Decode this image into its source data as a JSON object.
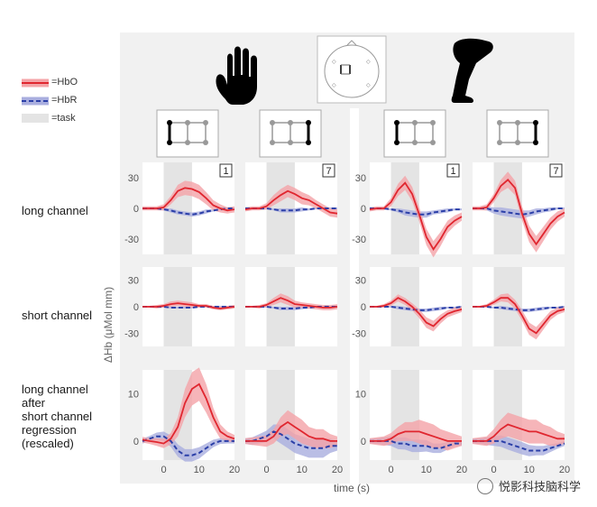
{
  "legend": {
    "hbo": "=HbO",
    "hbr": "=HbR",
    "task": "=task"
  },
  "row_labels": [
    "long channel",
    "short channel",
    "long channel\nafter\nshort channel\nregression\n(rescaled)"
  ],
  "y_axis_label": "ΔHb (μMol mm)",
  "x_axis_label": "time (s)",
  "watermark": "悦影科技脑科学",
  "colors": {
    "hbo": "#e0262f",
    "hbo_band": "#f4a3a7",
    "hbr": "#2b3fa8",
    "hbr_band": "#a9aedf",
    "task": "#e4e4e4",
    "panel_bg": "#f1f1f1"
  },
  "icons": {
    "left_group": "hand-icon",
    "right_group": "leg-icon",
    "center": "head-probe-icon"
  },
  "chart_data": {
    "type": "line",
    "x_ticks": [
      0,
      10,
      20
    ],
    "xlim": [
      -6,
      20
    ],
    "task_interval": [
      0,
      8
    ],
    "columns": [
      {
        "group": "hand",
        "badge": "1"
      },
      {
        "group": "hand",
        "badge": "7"
      },
      {
        "group": "leg",
        "badge": "1"
      },
      {
        "group": "leg",
        "badge": "7"
      }
    ],
    "rows": [
      {
        "name": "long channel",
        "y_ticks": [
          30,
          0,
          -30
        ],
        "ylim": [
          -45,
          45
        ],
        "panels": [
          {
            "x": [
              -6,
              -4,
              -2,
              0,
              2,
              4,
              6,
              8,
              10,
              12,
              14,
              16,
              18,
              20
            ],
            "hbo": [
              0,
              0,
              0,
              1,
              8,
              17,
              20,
              19,
              16,
              10,
              3,
              0,
              -2,
              -1
            ],
            "hbo_sd": [
              2,
              2,
              2,
              3,
              4,
              6,
              7,
              7,
              7,
              6,
              5,
              4,
              3,
              3
            ],
            "hbr": [
              0,
              0,
              0,
              -1,
              -2,
              -4,
              -5,
              -6,
              -5,
              -3,
              -2,
              -1,
              0,
              0
            ],
            "hbr_sd": [
              1,
              1,
              1,
              1,
              2,
              2,
              2,
              2,
              2,
              2,
              1,
              1,
              1,
              1
            ]
          },
          {
            "x": [
              -6,
              -4,
              -2,
              0,
              2,
              4,
              6,
              8,
              10,
              12,
              14,
              16,
              18,
              20
            ],
            "hbo": [
              -1,
              0,
              0,
              2,
              8,
              13,
              17,
              14,
              10,
              8,
              4,
              0,
              -4,
              -5
            ],
            "hbo_sd": [
              2,
              2,
              2,
              3,
              5,
              6,
              6,
              6,
              6,
              5,
              4,
              4,
              4,
              4
            ],
            "hbr": [
              0,
              0,
              0,
              0,
              -1,
              -2,
              -2,
              -2,
              -1,
              -1,
              0,
              0,
              0,
              0
            ],
            "hbr_sd": [
              1,
              1,
              1,
              1,
              1,
              2,
              2,
              2,
              2,
              1,
              1,
              1,
              1,
              1
            ]
          },
          {
            "x": [
              -6,
              -4,
              -2,
              0,
              2,
              4,
              6,
              8,
              10,
              12,
              14,
              16,
              18,
              20
            ],
            "hbo": [
              -1,
              0,
              0,
              6,
              18,
              25,
              14,
              -6,
              -28,
              -40,
              -30,
              -18,
              -12,
              -8
            ],
            "hbo_sd": [
              2,
              2,
              2,
              4,
              6,
              7,
              7,
              7,
              8,
              8,
              7,
              6,
              5,
              4
            ],
            "hbr": [
              0,
              0,
              0,
              -1,
              -2,
              -4,
              -5,
              -6,
              -6,
              -4,
              -3,
              -2,
              -1,
              -1
            ],
            "hbr_sd": [
              1,
              1,
              1,
              1,
              2,
              3,
              3,
              3,
              3,
              2,
              2,
              2,
              1,
              1
            ]
          },
          {
            "x": [
              -6,
              -4,
              -2,
              0,
              2,
              4,
              6,
              8,
              10,
              12,
              14,
              16,
              18,
              20
            ],
            "hbo": [
              0,
              0,
              1,
              10,
              22,
              28,
              20,
              -5,
              -25,
              -35,
              -25,
              -15,
              -8,
              -4
            ],
            "hbo_sd": [
              2,
              2,
              3,
              4,
              6,
              8,
              7,
              7,
              8,
              8,
              7,
              6,
              5,
              4
            ],
            "hbr": [
              0,
              0,
              0,
              -2,
              -3,
              -4,
              -5,
              -6,
              -5,
              -3,
              -2,
              -1,
              0,
              0
            ],
            "hbr_sd": [
              1,
              1,
              2,
              3,
              4,
              4,
              4,
              4,
              3,
              3,
              2,
              2,
              1,
              1
            ]
          }
        ]
      },
      {
        "name": "short channel",
        "y_ticks": [
          30,
          0,
          -30
        ],
        "ylim": [
          -45,
          45
        ],
        "panels": [
          {
            "x": [
              -6,
              -4,
              -2,
              0,
              2,
              4,
              6,
              8,
              10,
              12,
              14,
              16,
              18,
              20
            ],
            "hbo": [
              0,
              0,
              0,
              1,
              3,
              4,
              3,
              2,
              1,
              1,
              -1,
              -2,
              -1,
              0
            ],
            "hbo_sd": [
              1,
              1,
              2,
              2,
              3,
              3,
              3,
              3,
              2,
              2,
              2,
              2,
              2,
              2
            ],
            "hbr": [
              0,
              0,
              0,
              0,
              -1,
              -1,
              -1,
              -1,
              0,
              0,
              0,
              0,
              0,
              0
            ],
            "hbr_sd": [
              1,
              1,
              1,
              1,
              1,
              1,
              1,
              1,
              1,
              1,
              1,
              1,
              1,
              1
            ]
          },
          {
            "x": [
              -6,
              -4,
              -2,
              0,
              2,
              4,
              6,
              8,
              10,
              12,
              14,
              16,
              18,
              20
            ],
            "hbo": [
              0,
              0,
              0,
              2,
              6,
              10,
              7,
              3,
              2,
              1,
              0,
              -1,
              -1,
              0
            ],
            "hbo_sd": [
              1,
              1,
              2,
              2,
              4,
              5,
              5,
              4,
              3,
              3,
              3,
              3,
              3,
              3
            ],
            "hbr": [
              0,
              0,
              0,
              0,
              -1,
              -2,
              -2,
              -2,
              -1,
              -1,
              0,
              0,
              0,
              0
            ],
            "hbr_sd": [
              1,
              1,
              1,
              1,
              1,
              2,
              2,
              2,
              2,
              1,
              1,
              1,
              1,
              1
            ]
          },
          {
            "x": [
              -6,
              -4,
              -2,
              0,
              2,
              4,
              6,
              8,
              10,
              12,
              14,
              16,
              18,
              20
            ],
            "hbo": [
              0,
              0,
              1,
              4,
              10,
              6,
              0,
              -8,
              -18,
              -22,
              -14,
              -8,
              -5,
              -3
            ],
            "hbo_sd": [
              1,
              1,
              2,
              3,
              4,
              4,
              4,
              5,
              6,
              6,
              5,
              4,
              4,
              3
            ],
            "hbr": [
              0,
              0,
              0,
              0,
              -1,
              -2,
              -3,
              -4,
              -4,
              -3,
              -2,
              -1,
              -1,
              0
            ],
            "hbr_sd": [
              1,
              1,
              1,
              1,
              2,
              2,
              2,
              2,
              2,
              2,
              2,
              1,
              1,
              1
            ]
          },
          {
            "x": [
              -6,
              -4,
              -2,
              0,
              2,
              4,
              6,
              8,
              10,
              12,
              14,
              16,
              18,
              20
            ],
            "hbo": [
              0,
              0,
              1,
              5,
              10,
              10,
              3,
              -10,
              -25,
              -30,
              -20,
              -10,
              -5,
              -3
            ],
            "hbo_sd": [
              1,
              1,
              2,
              3,
              4,
              5,
              5,
              6,
              7,
              7,
              6,
              5,
              4,
              3
            ],
            "hbr": [
              0,
              0,
              0,
              -1,
              -1,
              -2,
              -3,
              -4,
              -4,
              -3,
              -2,
              -1,
              -1,
              0
            ],
            "hbr_sd": [
              1,
              1,
              1,
              1,
              2,
              2,
              2,
              2,
              2,
              2,
              2,
              1,
              1,
              1
            ]
          }
        ]
      },
      {
        "name": "long channel after short channel regression (rescaled)",
        "y_ticks": [
          10,
          0
        ],
        "ylim": [
          -4,
          15
        ],
        "panels": [
          {
            "x": [
              -6,
              -4,
              -2,
              0,
              2,
              4,
              6,
              8,
              10,
              12,
              14,
              16,
              18,
              20
            ],
            "hbo": [
              0.3,
              0,
              -0.2,
              -0.5,
              0.5,
              3,
              8,
              11,
              12,
              9,
              5,
              2,
              1,
              0.5
            ],
            "hbo_sd": [
              0.6,
              0.6,
              0.8,
              1,
              1.2,
              2,
              3,
              3.5,
              3.5,
              3,
              2,
              1.5,
              1,
              0.8
            ],
            "hbr": [
              0,
              0.5,
              1,
              1,
              0,
              -2,
              -3,
              -3,
              -2.5,
              -1.5,
              -0.5,
              0,
              0,
              0
            ],
            "hbr_sd": [
              0.5,
              0.6,
              0.8,
              1,
              1.2,
              1.3,
              1.3,
              1.3,
              1.2,
              1,
              0.8,
              0.6,
              0.5,
              0.5
            ]
          },
          {
            "x": [
              -6,
              -4,
              -2,
              0,
              2,
              4,
              6,
              8,
              10,
              12,
              14,
              16,
              18,
              20
            ],
            "hbo": [
              0,
              0,
              0,
              0,
              1,
              3,
              4,
              3,
              2,
              1,
              0.5,
              0.5,
              0,
              0
            ],
            "hbo_sd": [
              0.6,
              0.8,
              1,
              1.2,
              1.5,
              2,
              2.5,
              2.5,
              2.5,
              2,
              2,
              2,
              1.5,
              1
            ],
            "hbr": [
              0,
              0,
              0.5,
              1,
              2,
              1.5,
              0.5,
              -0.5,
              -1,
              -1.5,
              -1.5,
              -1.5,
              -1,
              -1
            ],
            "hbr_sd": [
              0.6,
              0.8,
              1,
              1.2,
              1.5,
              2,
              2,
              2,
              2,
              2,
              2,
              2,
              1.5,
              1
            ]
          },
          {
            "x": [
              -6,
              -4,
              -2,
              0,
              2,
              4,
              6,
              8,
              10,
              12,
              14,
              16,
              18,
              20
            ],
            "hbo": [
              0,
              0,
              0,
              0.5,
              1.5,
              2,
              2,
              2,
              1.5,
              1,
              0.5,
              0,
              0,
              0
            ],
            "hbo_sd": [
              0.6,
              0.8,
              1,
              1.2,
              1.5,
              2,
              2,
              2.5,
              2.5,
              2.5,
              2,
              2,
              1.5,
              1
            ],
            "hbr": [
              0,
              0,
              0,
              0,
              -0.5,
              -0.5,
              -1,
              -1,
              -1,
              -1.5,
              -1.5,
              -1,
              -0.5,
              -0.5
            ],
            "hbr_sd": [
              0.5,
              0.6,
              0.8,
              1,
              1.2,
              1.3,
              1.3,
              1.3,
              1.2,
              1,
              1,
              0.8,
              0.6,
              0.5
            ]
          },
          {
            "x": [
              -6,
              -4,
              -2,
              0,
              2,
              4,
              6,
              8,
              10,
              12,
              14,
              16,
              18,
              20
            ],
            "hbo": [
              0,
              0,
              0,
              1,
              2.5,
              3.5,
              3,
              2.5,
              2,
              2,
              1.5,
              1,
              0.5,
              0.5
            ],
            "hbo_sd": [
              0.6,
              0.8,
              1,
              1.5,
              2,
              2.5,
              2.5,
              2.5,
              2.5,
              2.5,
              2,
              2,
              1.5,
              1
            ],
            "hbr": [
              0,
              0,
              0,
              0,
              0,
              -0.5,
              -1,
              -1.5,
              -2,
              -2,
              -2,
              -1.5,
              -1,
              -0.5
            ],
            "hbr_sd": [
              0.5,
              0.6,
              0.8,
              1,
              1.2,
              1.3,
              1.3,
              1.3,
              1.2,
              1,
              1,
              0.8,
              0.6,
              0.5
            ]
          }
        ]
      }
    ]
  }
}
